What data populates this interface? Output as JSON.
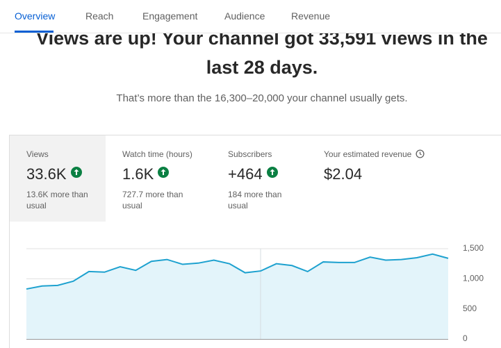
{
  "tabs": [
    "Overview",
    "Reach",
    "Engagement",
    "Audience",
    "Revenue"
  ],
  "headline": "Views are up! Your channel got 33,591 views in the last 28 days.",
  "subtext": "That’s more than the 16,300–20,000 your channel usually gets.",
  "metrics": [
    {
      "label": "Views",
      "value": "33.6K",
      "note": "13.6K more than usual"
    },
    {
      "label": "Watch time (hours)",
      "value": "1.6K",
      "note": "727.7 more than usual"
    },
    {
      "label": "Subscribers",
      "value": "+464",
      "note": "184 more than usual"
    },
    {
      "label": "Your estimated revenue",
      "value": "$2.04"
    }
  ],
  "chart_data": {
    "type": "line",
    "values": [
      830,
      880,
      890,
      960,
      1120,
      1110,
      1200,
      1140,
      1290,
      1320,
      1240,
      1260,
      1310,
      1250,
      1100,
      1130,
      1250,
      1220,
      1120,
      1280,
      1270,
      1270,
      1360,
      1310,
      1320,
      1350,
      1410,
      1340
    ],
    "color": "#1da1cf",
    "ylim": [
      0,
      1500
    ],
    "yticks": [
      0,
      500,
      {
        "value": 1000,
        "label": "1,000"
      },
      {
        "value": 1500,
        "label": "1,500"
      }
    ],
    "grid": true
  }
}
